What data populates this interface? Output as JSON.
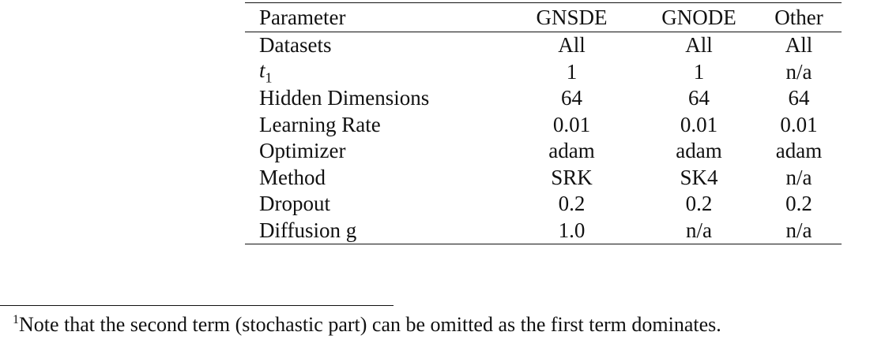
{
  "table": {
    "headers": [
      "Parameter",
      "GNSDE",
      "GNODE",
      "Other"
    ],
    "rows": [
      [
        "Datasets",
        "All",
        "All",
        "All"
      ],
      [
        "t",
        "1",
        "1",
        "n/a"
      ],
      [
        "Hidden Dimensions",
        "64",
        "64",
        "64"
      ],
      [
        "Learning Rate",
        "0.01",
        "0.01",
        "0.01"
      ],
      [
        "Optimizer",
        "adam",
        "adam",
        "adam"
      ],
      [
        "Method",
        "SRK",
        "SK4",
        "n/a"
      ],
      [
        "Dropout",
        "0.2",
        "0.2",
        "0.2"
      ],
      [
        "Diffusion g",
        "1.0",
        "n/a",
        "n/a"
      ]
    ],
    "t1_subscript": "1"
  },
  "footnote": {
    "marker": "1",
    "text": "Note that the second term (stochastic part) can be omitted as the first term dominates."
  }
}
